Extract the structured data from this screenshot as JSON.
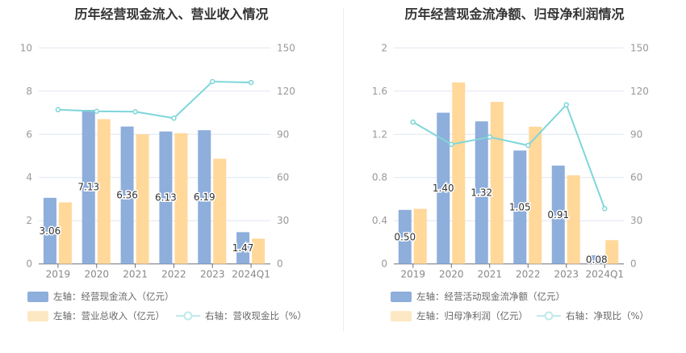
{
  "chart_data": [
    {
      "type": "bar",
      "title": "历年经营现金流入、营业收入情况",
      "categories": [
        "2019",
        "2020",
        "2021",
        "2022",
        "2023",
        "2024Q1"
      ],
      "left_axis": {
        "ylim": [
          0,
          10
        ],
        "ticks": [
          "0",
          "2",
          "4",
          "6",
          "8",
          "10"
        ]
      },
      "right_axis": {
        "ylim": [
          0,
          150
        ],
        "ticks": [
          "0",
          "30",
          "60",
          "90",
          "120",
          "150"
        ]
      },
      "grid": true,
      "series": [
        {
          "name": "左轴：经营现金流入（亿元）",
          "type": "bar",
          "axis": "left",
          "color": "#8eaedb",
          "values": [
            3.06,
            7.13,
            6.36,
            6.13,
            6.19,
            1.47
          ],
          "labels": [
            "3.06",
            "7.13",
            "6.36",
            "6.13",
            "6.19",
            "1.47"
          ]
        },
        {
          "name": "左轴：营业总收入（亿元）",
          "type": "bar",
          "axis": "left",
          "color": "#ffd89a",
          "values": [
            2.85,
            6.7,
            6.0,
            6.05,
            4.87,
            1.17
          ]
        },
        {
          "name": "右轴：营收现金比（%）",
          "type": "line",
          "axis": "right",
          "color": "#7fd6d9",
          "values": [
            107.1,
            106.0,
            105.7,
            101.2,
            126.6,
            126.0
          ]
        }
      ],
      "legend_placement": "bottom"
    },
    {
      "type": "bar",
      "title": "历年经营现金流净额、归母净利润情况",
      "categories": [
        "2019",
        "2020",
        "2021",
        "2022",
        "2023",
        "2024Q1"
      ],
      "left_axis": {
        "ylim": [
          0,
          2
        ],
        "ticks": [
          "0",
          "0.4",
          "0.8",
          "1.2",
          "1.6",
          "2"
        ]
      },
      "right_axis": {
        "ylim": [
          0,
          150
        ],
        "ticks": [
          "0",
          "30",
          "60",
          "90",
          "120",
          "150"
        ]
      },
      "grid": true,
      "series": [
        {
          "name": "左轴：经营活动现金流净额（亿元）",
          "type": "bar",
          "axis": "left",
          "color": "#8eaedb",
          "values": [
            0.5,
            1.4,
            1.32,
            1.05,
            0.91,
            0.08
          ],
          "labels": [
            "0.50",
            "1.40",
            "1.32",
            "1.05",
            "0.91",
            "0.08"
          ]
        },
        {
          "name": "左轴：归母净利润（亿元）",
          "type": "bar",
          "axis": "left",
          "color": "#ffd89a",
          "values": [
            0.51,
            1.68,
            1.5,
            1.27,
            0.82,
            0.22
          ]
        },
        {
          "name": "右轴：净现比（%）",
          "type": "line",
          "axis": "right",
          "color": "#7fd6d9",
          "values": [
            98.5,
            83.0,
            88.1,
            82.3,
            110.5,
            38.4
          ]
        }
      ],
      "legend_placement": "bottom"
    }
  ]
}
